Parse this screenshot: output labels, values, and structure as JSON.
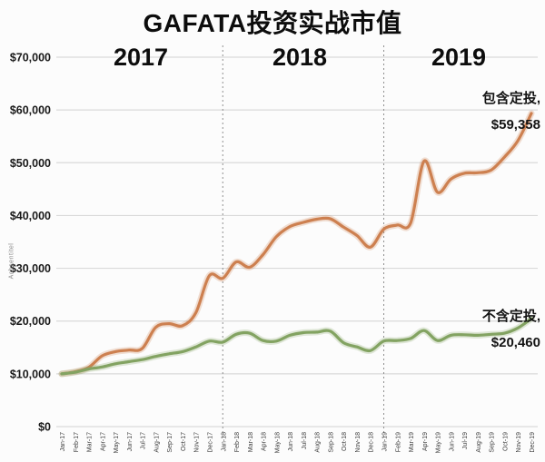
{
  "title": "GAFATA投资实战市值",
  "y_axis_title": "Achsentitel",
  "year_labels": [
    "2017",
    "2018",
    "2019"
  ],
  "annotations": {
    "with_dca": {
      "line1": "包含定投,",
      "line2": "$59,358"
    },
    "without_dca": {
      "line1": "不含定投,",
      "line2": "$20,460"
    }
  },
  "colors": {
    "with_dca": "#cd8050",
    "without_dca": "#83a362",
    "grid": "#dadada",
    "year_divider": "#8f8f8f",
    "title_text": "#0d0d0d",
    "tick_text": "#3d3d3d"
  },
  "chart_data": {
    "type": "line",
    "title": "GAFATA投资实战市值",
    "smooth": true,
    "grid": "horizontal",
    "legend_position": "end-of-line annotations",
    "ylim": [
      0,
      70000
    ],
    "ytick_step": 10000,
    "ytick_labels": [
      "$0",
      "$10,000",
      "$20,000",
      "$30,000",
      "$40,000",
      "$50,000",
      "$60,000",
      "$70,000"
    ],
    "year_divider_indices": [
      12,
      24
    ],
    "x": [
      "Jan-17",
      "Feb-17",
      "Mar-17",
      "Apr-17",
      "May-17",
      "Jun-17",
      "Jul-17",
      "Aug-17",
      "Sep-17",
      "Oct-17",
      "Nov-17",
      "Dec-17",
      "Jan-18",
      "Feb-18",
      "Mar-18",
      "Apr-18",
      "May-18",
      "Jun-18",
      "Jul-18",
      "Aug-18",
      "Sep-18",
      "Oct-18",
      "Nov-18",
      "Dec-18",
      "Jan-19",
      "Feb-19",
      "Mar-19",
      "Apr-19",
      "May-19",
      "Jun-19",
      "Jul-19",
      "Aug-19",
      "Sep-19",
      "Oct-19",
      "Nov-19",
      "Dec-19"
    ],
    "series": [
      {
        "name": "包含定投",
        "end_value_label": "$59,358",
        "color": "#cd8050",
        "values": [
          10000,
          10400,
          11200,
          13400,
          14200,
          14500,
          14800,
          18800,
          19500,
          19100,
          21600,
          28600,
          28100,
          31200,
          30200,
          32600,
          36000,
          37900,
          38700,
          39300,
          39400,
          37800,
          36200,
          34000,
          37400,
          38200,
          38600,
          50300,
          44400,
          46900,
          48000,
          48100,
          48600,
          51100,
          54200,
          59358
        ]
      },
      {
        "name": "不含定投",
        "end_value_label": "$20,460",
        "color": "#83a362",
        "values": [
          10000,
          10300,
          10900,
          11300,
          11900,
          12300,
          12700,
          13300,
          13800,
          14200,
          15100,
          16200,
          16000,
          17500,
          17700,
          16300,
          16200,
          17300,
          17800,
          17900,
          18100,
          15900,
          15100,
          14400,
          16200,
          16300,
          16700,
          18200,
          16300,
          17300,
          17400,
          17300,
          17500,
          17700,
          18700,
          20460
        ]
      }
    ]
  }
}
